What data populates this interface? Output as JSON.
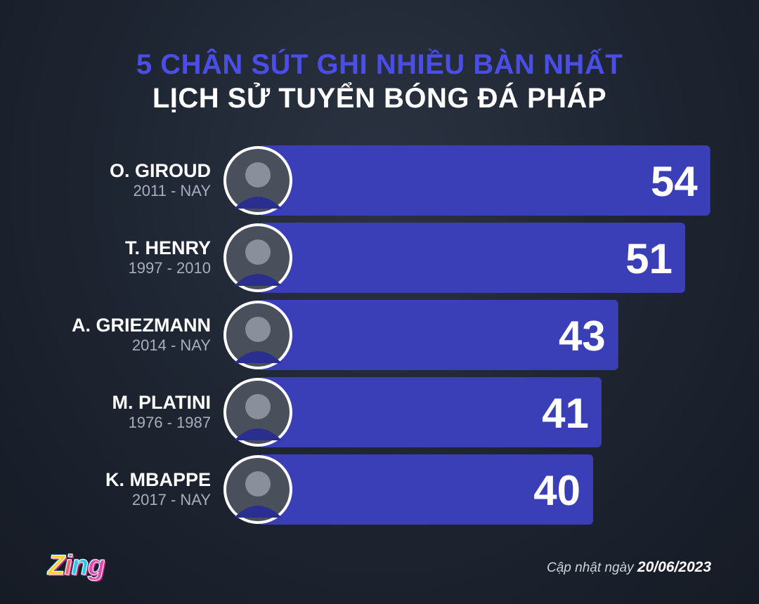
{
  "header": {
    "title_line1": "5 CHÂN SÚT GHI NHIỀU BÀN NHẤT",
    "title_line2": "LỊCH SỬ TUYỂN BÓNG ĐÁ PHÁP"
  },
  "footer": {
    "logo": "Zing",
    "updated_label": "Cập nhật ngày",
    "updated_date": "20/06/2023"
  },
  "colors": {
    "bar": "#3a3fb8",
    "title_accent": "#4a4ee6",
    "name": "#ffffff",
    "years": "#a9aebb"
  },
  "chart_data": {
    "type": "bar",
    "categories": [
      "O. GIROUD",
      "T. HENRY",
      "A. GRIEZMANN",
      "M. PLATINI",
      "K. MBAPPE"
    ],
    "subtitles": [
      "2011 - NAY",
      "1997 - 2010",
      "2014 - NAY",
      "1976 - 1987",
      "2017 - NAY"
    ],
    "values": [
      54,
      51,
      43,
      41,
      40
    ],
    "title": "5 CHÂN SÚT GHI NHIỀU BÀN NHẤT LỊCH SỬ TUYỂN BÓNG ĐÁ PHÁP",
    "xlabel": "",
    "ylabel": "",
    "orientation": "horizontal",
    "grid": false,
    "legend": "none",
    "value_labels": true
  }
}
